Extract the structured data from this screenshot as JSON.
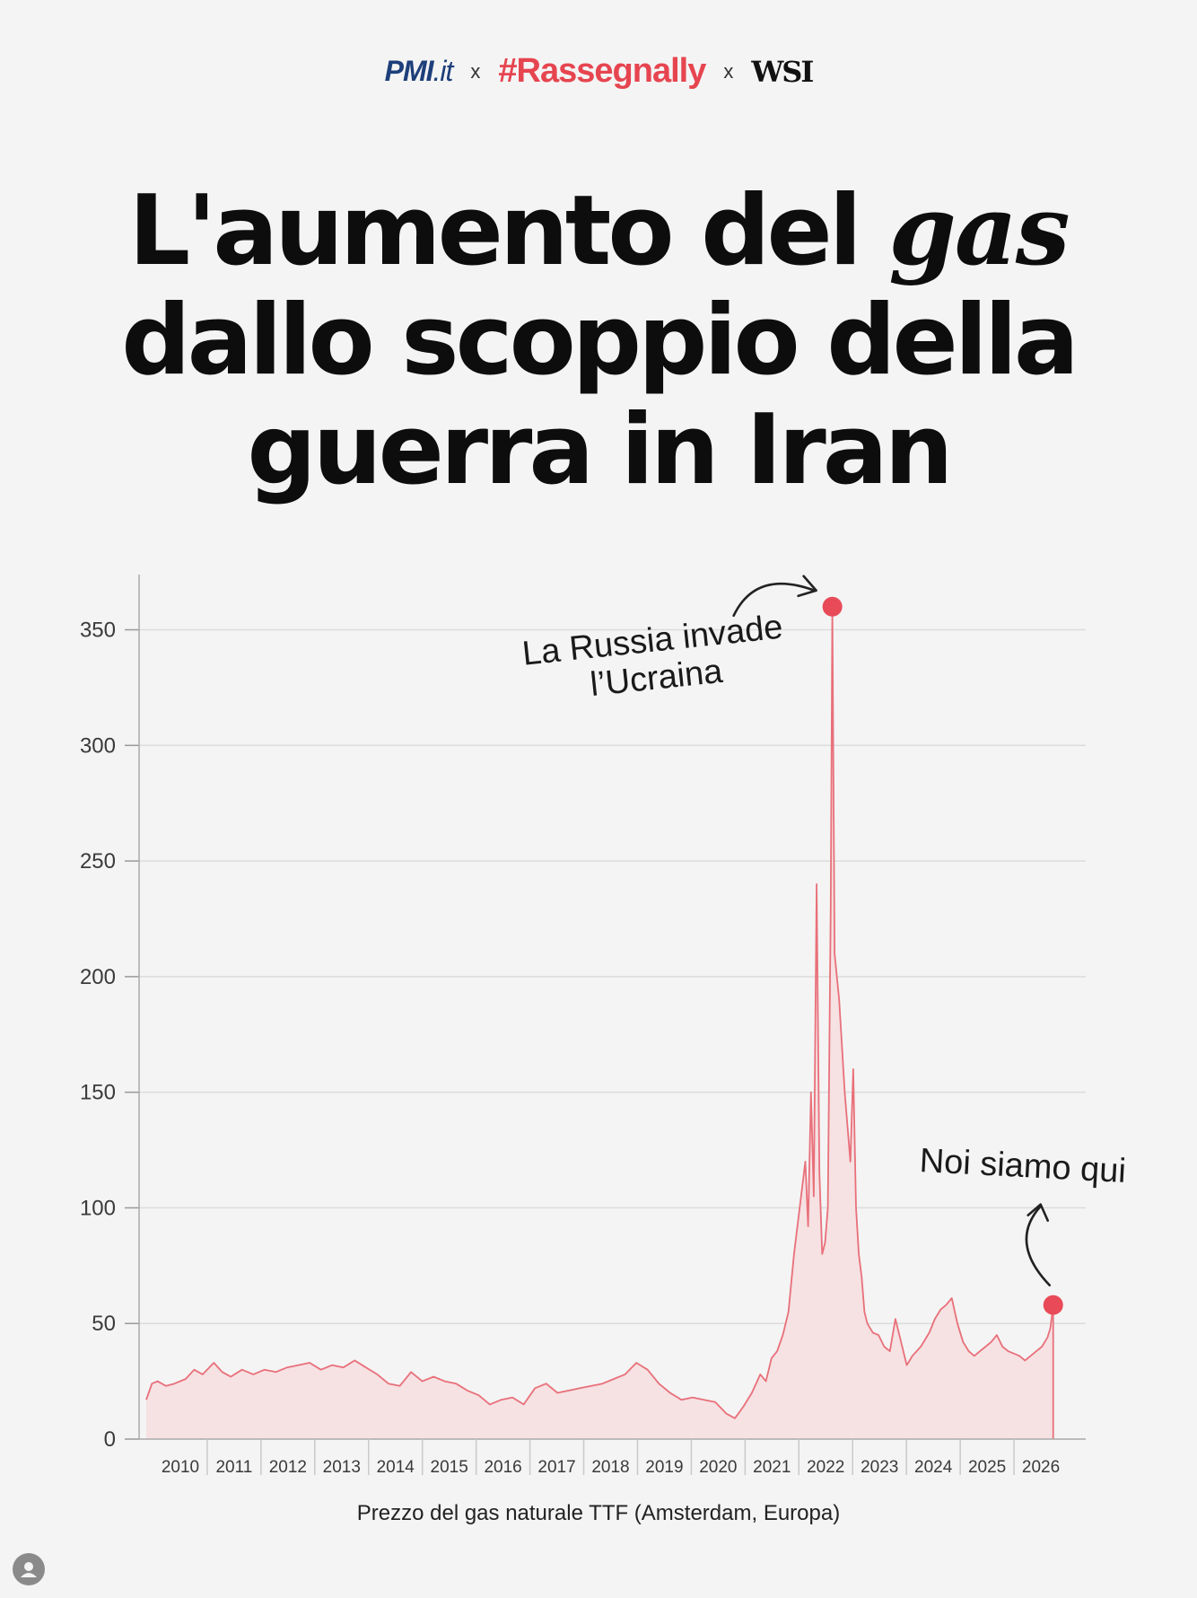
{
  "brands": {
    "pmi": "PMI",
    "pmi_suffix": ".it",
    "separator1": "x",
    "rassegnally": "#Rassegnally",
    "separator2": "x",
    "wsi": "WSI"
  },
  "title": {
    "line1_a": "L'aumento del ",
    "line1_b": "gas",
    "line2": "dallo scoppio della",
    "line3": "guerra in Iran"
  },
  "annotations": {
    "russia_line1": "La Russia invade",
    "russia_line2": "l’Ucraina",
    "here": "Noi siamo qui"
  },
  "caption": "Prezzo del gas naturale TTF (Amsterdam, Europa)",
  "colors": {
    "line": "#e8707a",
    "fill": "#f6e1e3",
    "marker": "#e84a58",
    "grid": "#dcdcdc"
  },
  "chart_data": {
    "type": "area",
    "title": "",
    "xlabel": "Prezzo del gas naturale TTF (Amsterdam, Europa)",
    "ylabel": "",
    "xlim": [
      2009.7,
      2026.2
    ],
    "ylim": [
      0,
      370
    ],
    "grid": true,
    "y_ticks": [
      0,
      50,
      100,
      150,
      200,
      250,
      300,
      350
    ],
    "x_tick_labels": [
      "2010",
      "2011",
      "2012",
      "2013",
      "2014",
      "2015",
      "2016",
      "2017",
      "2018",
      "2019",
      "2020",
      "2021",
      "2022",
      "2023",
      "2024",
      "2025",
      "2026"
    ],
    "series": [
      {
        "name": "",
        "x": [
          2010.0,
          2010.1,
          2010.2,
          2010.35,
          2010.5,
          2010.7,
          2010.85,
          2011.0,
          2011.2,
          2011.35,
          2011.5,
          2011.7,
          2011.9,
          2012.1,
          2012.3,
          2012.5,
          2012.7,
          2012.9,
          2013.1,
          2013.3,
          2013.5,
          2013.7,
          2013.9,
          2014.1,
          2014.3,
          2014.5,
          2014.7,
          2014.9,
          2015.1,
          2015.3,
          2015.5,
          2015.7,
          2015.9,
          2016.1,
          2016.3,
          2016.5,
          2016.7,
          2016.9,
          2017.1,
          2017.3,
          2017.5,
          2017.7,
          2017.9,
          2018.1,
          2018.3,
          2018.5,
          2018.7,
          2018.9,
          2019.1,
          2019.3,
          2019.5,
          2019.7,
          2019.9,
          2020.1,
          2020.3,
          2020.45,
          2020.6,
          2020.75,
          2020.9,
          2021.0,
          2021.1,
          2021.2,
          2021.3,
          2021.4,
          2021.5,
          2021.6,
          2021.7,
          2021.75,
          2021.8,
          2021.85,
          2021.9,
          2021.95,
          2022.0,
          2022.05,
          2022.1,
          2022.15,
          2022.18,
          2022.22,
          2022.3,
          2022.4,
          2022.5,
          2022.55,
          2022.6,
          2022.65,
          2022.7,
          2022.75,
          2022.8,
          2022.85,
          2022.9,
          2023.0,
          2023.1,
          2023.2,
          2023.3,
          2023.4,
          2023.5,
          2023.6,
          2023.75,
          2023.9,
          2024.0,
          2024.1,
          2024.2,
          2024.3,
          2024.4,
          2024.5,
          2024.6,
          2024.7,
          2024.8,
          2024.9,
          2025.0,
          2025.1,
          2025.2,
          2025.3,
          2025.4,
          2025.5,
          2025.6,
          2025.7,
          2025.8,
          2025.9,
          2026.0,
          2026.05,
          2026.1
        ],
        "values": [
          17,
          24,
          25,
          23,
          24,
          26,
          30,
          28,
          33,
          29,
          27,
          30,
          28,
          30,
          29,
          31,
          32,
          33,
          30,
          32,
          31,
          34,
          31,
          28,
          24,
          23,
          29,
          25,
          27,
          25,
          24,
          21,
          19,
          15,
          17,
          18,
          15,
          22,
          24,
          20,
          21,
          22,
          23,
          24,
          26,
          28,
          33,
          30,
          24,
          20,
          17,
          18,
          17,
          16,
          11,
          9,
          14,
          20,
          28,
          25,
          35,
          38,
          45,
          55,
          80,
          100,
          120,
          92,
          150,
          105,
          240,
          115,
          80,
          85,
          100,
          230,
          360,
          210,
          190,
          150,
          120,
          160,
          100,
          80,
          70,
          55,
          50,
          48,
          46,
          45,
          40,
          38,
          52,
          42,
          32,
          36,
          40,
          46,
          52,
          56,
          58,
          61,
          50,
          42,
          38,
          36,
          38,
          40,
          42,
          45,
          40,
          38,
          37,
          36,
          34,
          36,
          38,
          40,
          44,
          48,
          58
        ]
      }
    ],
    "highlights": [
      {
        "label": "La Russia invade l’Ucraina",
        "x": 2022.18,
        "y": 360
      },
      {
        "label": "Noi siamo qui",
        "x": 2026.1,
        "y": 58
      }
    ]
  }
}
